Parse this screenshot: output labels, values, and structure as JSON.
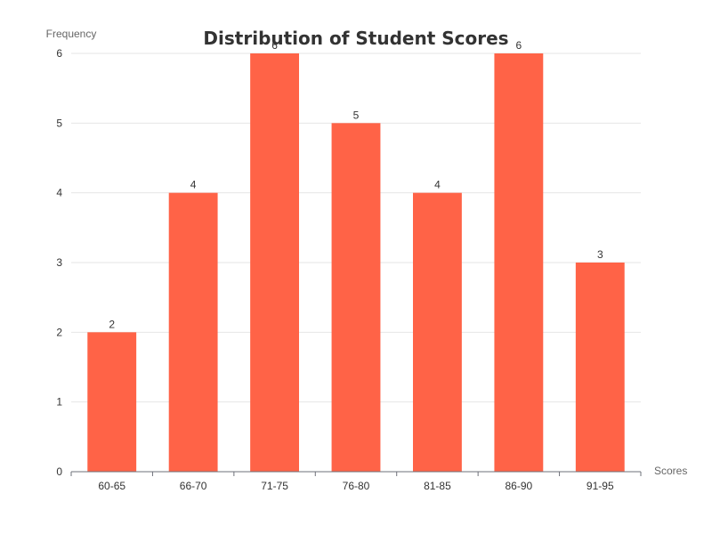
{
  "chart_data": {
    "type": "bar",
    "title": "Distribution of Student Scores",
    "xlabel": "Scores",
    "ylabel": "Frequency",
    "categories": [
      "60-65",
      "66-70",
      "71-75",
      "76-80",
      "81-85",
      "86-90",
      "91-95"
    ],
    "values": [
      2,
      4,
      6,
      5,
      4,
      6,
      3
    ],
    "ylim": [
      0,
      6
    ],
    "yticks": [
      0,
      1,
      2,
      3,
      4,
      5,
      6
    ],
    "grid": true,
    "legend": "none",
    "colors": {
      "bar": "#ff6347",
      "grid": "#e6e6e6",
      "axis": "#6e7079"
    }
  }
}
